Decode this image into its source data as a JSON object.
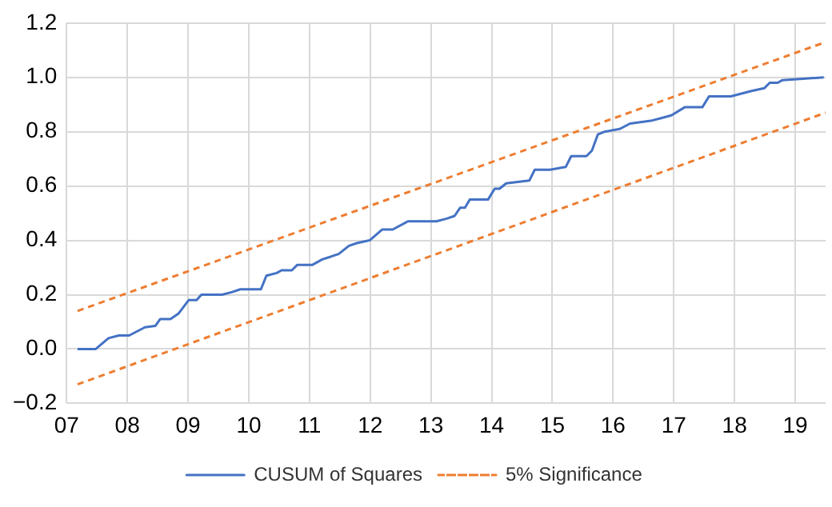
{
  "chart_data": {
    "type": "line",
    "legend": "bottom",
    "grid": true,
    "marker": "none",
    "xlim": [
      2007,
      2019.5
    ],
    "xticks": [
      {
        "value": 2007,
        "label": "07"
      },
      {
        "value": 2008,
        "label": "08"
      },
      {
        "value": 2009,
        "label": "09"
      },
      {
        "value": 2010,
        "label": "10"
      },
      {
        "value": 2011,
        "label": "11"
      },
      {
        "value": 2012,
        "label": "12"
      },
      {
        "value": 2013,
        "label": "13"
      },
      {
        "value": 2014,
        "label": "14"
      },
      {
        "value": 2015,
        "label": "15"
      },
      {
        "value": 2016,
        "label": "16"
      },
      {
        "value": 2017,
        "label": "17"
      },
      {
        "value": 2018,
        "label": "18"
      },
      {
        "value": 2019,
        "label": "19"
      }
    ],
    "ylim": [
      -0.2,
      1.2
    ],
    "yticks": [
      {
        "value": -0.2,
        "label": "−0.2"
      },
      {
        "value": 0,
        "label": "0.0"
      },
      {
        "value": 0.2,
        "label": "0.2"
      },
      {
        "value": 0.4,
        "label": "0.4"
      },
      {
        "value": 0.6,
        "label": "0.6"
      },
      {
        "value": 0.8,
        "label": "0.8"
      },
      {
        "value": 1,
        "label": "1.0"
      },
      {
        "value": 1.2,
        "label": "1.2"
      }
    ],
    "series": [
      {
        "name": "CUSUM of Squares",
        "color": "#4472c4",
        "line_style": "solid",
        "x": [
          2007.18,
          2007.48,
          2007.69,
          2007.86,
          2008.03,
          2008.29,
          2008.46,
          2008.54,
          2008.71,
          2008.84,
          2009.01,
          2009.14,
          2009.22,
          2009.56,
          2009.73,
          2009.86,
          2010.2,
          2010.29,
          2010.46,
          2010.54,
          2010.71,
          2010.8,
          2011.05,
          2011.21,
          2011.35,
          2011.48,
          2011.65,
          2011.78,
          2011.99,
          2012.2,
          2012.37,
          2012.62,
          2013.09,
          2013.26,
          2013.39,
          2013.48,
          2013.56,
          2013.64,
          2013.94,
          2014.05,
          2014.13,
          2014.24,
          2014.62,
          2014.71,
          2014.96,
          2015.22,
          2015.31,
          2015.56,
          2015.65,
          2015.75,
          2015.86,
          2016.11,
          2016.28,
          2016.62,
          2016.79,
          2016.96,
          2017.18,
          2017.47,
          2017.58,
          2017.94,
          2018.28,
          2018.49,
          2018.58,
          2018.71,
          2018.79,
          2019.47
        ],
        "values": [
          0,
          0,
          0.04,
          0.05,
          0.05,
          0.08,
          0.085,
          0.11,
          0.11,
          0.13,
          0.18,
          0.18,
          0.2,
          0.2,
          0.21,
          0.22,
          0.22,
          0.27,
          0.28,
          0.29,
          0.29,
          0.31,
          0.31,
          0.33,
          0.34,
          0.35,
          0.38,
          0.39,
          0.4,
          0.44,
          0.44,
          0.47,
          0.47,
          0.48,
          0.49,
          0.52,
          0.52,
          0.55,
          0.55,
          0.59,
          0.59,
          0.61,
          0.62,
          0.66,
          0.66,
          0.67,
          0.71,
          0.71,
          0.73,
          0.79,
          0.8,
          0.81,
          0.83,
          0.84,
          0.85,
          0.86,
          0.89,
          0.89,
          0.93,
          0.93,
          0.95,
          0.96,
          0.98,
          0.98,
          0.99,
          1
        ]
      },
      {
        "name": "5% Significance",
        "color": "#ed7d31",
        "line_style": "dashed",
        "x": [
          2007.18,
          2019.5
        ],
        "values": [
          0.14,
          1.13
        ]
      },
      {
        "color": "#ed7d31",
        "line_style": "dashed",
        "x": [
          2007.18,
          2019.5
        ],
        "values": [
          -0.13,
          0.87
        ]
      }
    ]
  }
}
